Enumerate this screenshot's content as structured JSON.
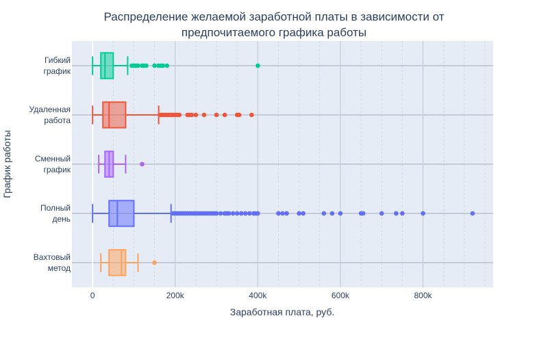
{
  "chart_data": {
    "type": "box",
    "orientation": "horizontal",
    "title_lines": [
      "Распределение желаемой заработной платы в зависимости от",
      "предпочитаемого графика работы"
    ],
    "xlabel": "Заработная плата, руб.",
    "ylabel": "График работы",
    "xlim": [
      -50000,
      970000
    ],
    "x_ticks": [
      0,
      200000,
      400000,
      600000,
      800000
    ],
    "x_tick_labels": [
      "0",
      "200k",
      "400k",
      "600k",
      "800k"
    ],
    "grid": true,
    "legend": false,
    "series": [
      {
        "category_lines": [
          "Гибкий",
          "график"
        ],
        "color": "#00cc96",
        "min": 0,
        "q1": 20000,
        "median": 30000,
        "q3": 50000,
        "max": 85000,
        "outliers": [
          95000,
          100000,
          105000,
          110000,
          120000,
          125000,
          130000,
          150000,
          160000,
          165000,
          170000,
          180000,
          400000
        ]
      },
      {
        "category_lines": [
          "Удаленная",
          "работа"
        ],
        "color": "#ef553b",
        "min": 0,
        "q1": 25000,
        "median": 40000,
        "q3": 80000,
        "max": 160000,
        "outliers": [
          165000,
          170000,
          175000,
          180000,
          185000,
          190000,
          195000,
          200000,
          205000,
          210000,
          230000,
          235000,
          240000,
          250000,
          270000,
          300000,
          320000,
          350000,
          355000,
          385000
        ]
      },
      {
        "category_lines": [
          "Сменный",
          "график"
        ],
        "color": "#ab63fa",
        "min": 15000,
        "q1": 30000,
        "median": 40000,
        "q3": 50000,
        "max": 80000,
        "outliers": [
          120000
        ]
      },
      {
        "category_lines": [
          "Полный",
          "день"
        ],
        "color": "#636efa",
        "min": 0,
        "q1": 40000,
        "median": 60000,
        "q3": 100000,
        "max": 190000,
        "outliers": [
          195000,
          200000,
          205000,
          210000,
          215000,
          220000,
          225000,
          230000,
          235000,
          240000,
          245000,
          250000,
          255000,
          260000,
          265000,
          270000,
          275000,
          280000,
          285000,
          290000,
          295000,
          300000,
          310000,
          320000,
          325000,
          330000,
          340000,
          350000,
          360000,
          370000,
          380000,
          390000,
          395000,
          400000,
          450000,
          460000,
          470000,
          500000,
          510000,
          560000,
          580000,
          600000,
          650000,
          655000,
          700000,
          735000,
          750000,
          800000,
          920000
        ]
      },
      {
        "category_lines": [
          "Вахтовый",
          "метод"
        ],
        "color": "#ffa15a",
        "min": 20000,
        "q1": 40000,
        "median": 70000,
        "q3": 80000,
        "max": 110000,
        "outliers": [
          150000
        ]
      }
    ]
  }
}
